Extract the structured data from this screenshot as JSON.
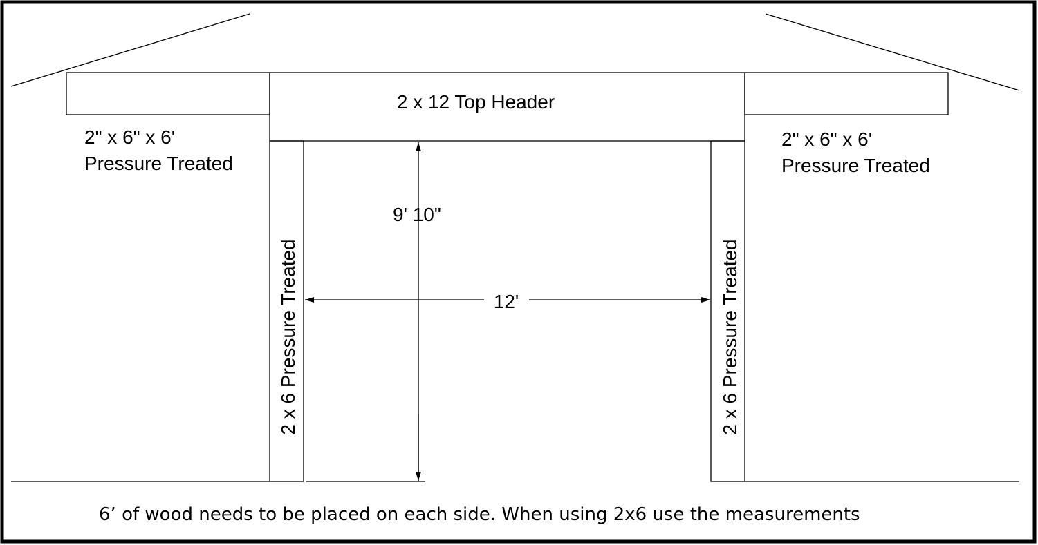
{
  "header": {
    "label": "2 x 12 Top Header"
  },
  "left_beam": {
    "line1": "2\" x 6\" x 6'",
    "line2": "Pressure Treated"
  },
  "right_beam": {
    "line1": "2\" x 6\" x 6'",
    "line2": "Pressure Treated"
  },
  "left_post": {
    "label": "2 x 6 Pressure Treated"
  },
  "right_post": {
    "label": "2 x 6 Pressure Treated"
  },
  "dimensions": {
    "height": "9' 10\"",
    "width": "12'"
  },
  "footer": {
    "note": "6’ of wood needs to be placed on each side.  When using 2x6 use the measurements"
  }
}
